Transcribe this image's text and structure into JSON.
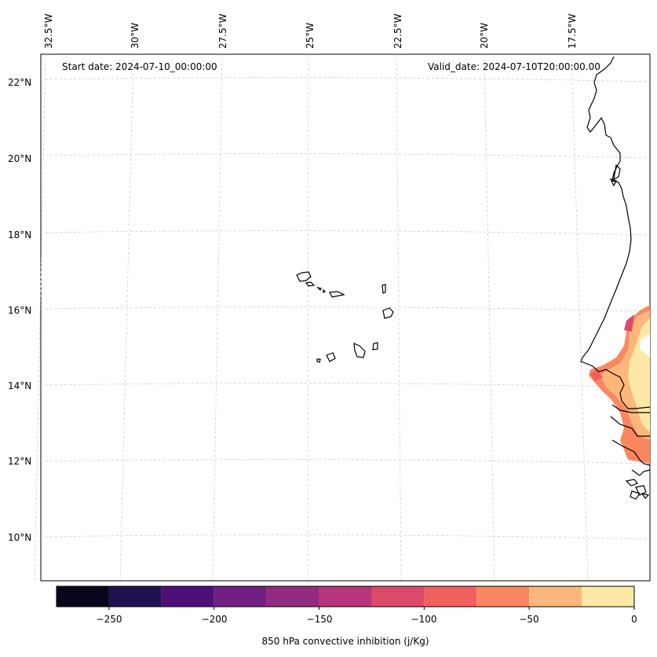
{
  "map": {
    "start_date": "Start date: 2024-07-10_00:00:00",
    "valid_date": "Valid_date: 2024-07-10T20:00:00.00",
    "longitude_labels": [
      "32.5°W",
      "30°W",
      "27.5°W",
      "25°W",
      "22.5°W",
      "20°W",
      "17.5°W"
    ],
    "latitude_labels": [
      "22°N",
      "20°N",
      "18°N",
      "16°N",
      "14°N",
      "12°N",
      "10°N"
    ],
    "features": [
      "Cape Verde islands",
      "West African coastline"
    ]
  },
  "colorbar": {
    "label": "850 hPa convective inhibition (j/Kg)",
    "ticks": [
      "−250",
      "−200",
      "−150",
      "−100",
      "−50",
      "0"
    ],
    "levels": [
      -275,
      -250,
      -225,
      -200,
      -175,
      -150,
      -125,
      -100,
      -75,
      -50,
      -25,
      0
    ],
    "colors": [
      "#07061a",
      "#221150",
      "#4e0f79",
      "#721f81",
      "#932b80",
      "#b63679",
      "#db4a6b",
      "#f1605d",
      "#fb8761",
      "#fdb77a",
      "#fde8a6"
    ]
  }
}
